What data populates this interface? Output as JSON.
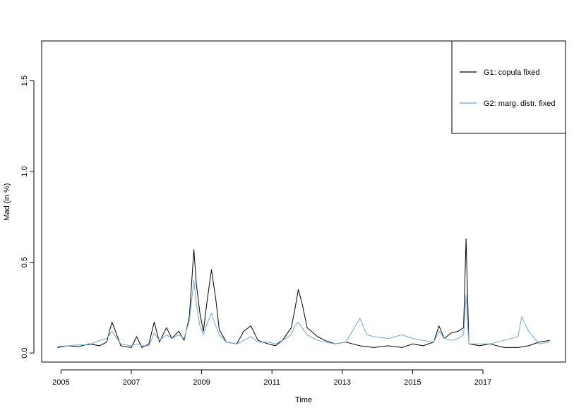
{
  "chart_data": {
    "type": "line",
    "title": "",
    "xlabel": "Time",
    "ylabel": "Mad (in %)",
    "xlim": [
      2004.45,
      2019.35
    ],
    "ylim": [
      -0.05,
      1.72
    ],
    "x_ticks": [
      2005,
      2007,
      2009,
      2011,
      2013,
      2015,
      2017
    ],
    "x_tick_labels": [
      "2005",
      "2007",
      "2009",
      "2011",
      "2013",
      "2015",
      "2017"
    ],
    "y_ticks": [
      0.0,
      0.5,
      1.0,
      1.5
    ],
    "y_tick_labels": [
      "0.0",
      "0.5",
      "1.0",
      "1.5"
    ],
    "grid": false,
    "legend_position": "top-right",
    "series": [
      {
        "name": "G1: copula fixed",
        "color": "#000000",
        "points": [
          [
            2004.9,
            0.03
          ],
          [
            2005.2,
            0.04
          ],
          [
            2005.5,
            0.035
          ],
          [
            2005.8,
            0.05
          ],
          [
            2006.1,
            0.04
          ],
          [
            2006.3,
            0.06
          ],
          [
            2006.45,
            0.17
          ],
          [
            2006.55,
            0.12
          ],
          [
            2006.7,
            0.04
          ],
          [
            2007.0,
            0.03
          ],
          [
            2007.15,
            0.09
          ],
          [
            2007.3,
            0.03
          ],
          [
            2007.5,
            0.05
          ],
          [
            2007.65,
            0.17
          ],
          [
            2007.8,
            0.06
          ],
          [
            2008.0,
            0.14
          ],
          [
            2008.15,
            0.08
          ],
          [
            2008.35,
            0.12
          ],
          [
            2008.5,
            0.07
          ],
          [
            2008.65,
            0.2
          ],
          [
            2008.78,
            0.57
          ],
          [
            2008.85,
            0.38
          ],
          [
            2008.95,
            0.22
          ],
          [
            2009.05,
            0.12
          ],
          [
            2009.15,
            0.28
          ],
          [
            2009.28,
            0.46
          ],
          [
            2009.4,
            0.3
          ],
          [
            2009.5,
            0.13
          ],
          [
            2009.7,
            0.06
          ],
          [
            2010.0,
            0.05
          ],
          [
            2010.2,
            0.12
          ],
          [
            2010.4,
            0.15
          ],
          [
            2010.6,
            0.07
          ],
          [
            2010.9,
            0.05
          ],
          [
            2011.1,
            0.04
          ],
          [
            2011.3,
            0.07
          ],
          [
            2011.55,
            0.14
          ],
          [
            2011.65,
            0.24
          ],
          [
            2011.75,
            0.35
          ],
          [
            2011.85,
            0.28
          ],
          [
            2012.0,
            0.14
          ],
          [
            2012.3,
            0.09
          ],
          [
            2012.5,
            0.07
          ],
          [
            2012.8,
            0.05
          ],
          [
            2013.1,
            0.06
          ],
          [
            2013.5,
            0.04
          ],
          [
            2013.9,
            0.03
          ],
          [
            2014.3,
            0.04
          ],
          [
            2014.7,
            0.03
          ],
          [
            2015.0,
            0.05
          ],
          [
            2015.3,
            0.04
          ],
          [
            2015.6,
            0.06
          ],
          [
            2015.75,
            0.15
          ],
          [
            2015.9,
            0.08
          ],
          [
            2016.1,
            0.11
          ],
          [
            2016.3,
            0.12
          ],
          [
            2016.45,
            0.14
          ],
          [
            2016.52,
            0.63
          ],
          [
            2016.6,
            0.05
          ],
          [
            2016.9,
            0.04
          ],
          [
            2017.2,
            0.05
          ],
          [
            2017.6,
            0.03
          ],
          [
            2018.0,
            0.03
          ],
          [
            2018.3,
            0.04
          ],
          [
            2018.6,
            0.06
          ],
          [
            2018.9,
            0.07
          ]
        ]
      },
      {
        "name": "G2: marg. distr. fixed",
        "color": "#6fa8d6",
        "points": [
          [
            2004.9,
            0.035
          ],
          [
            2005.2,
            0.04
          ],
          [
            2005.5,
            0.045
          ],
          [
            2005.8,
            0.045
          ],
          [
            2006.1,
            0.07
          ],
          [
            2006.3,
            0.08
          ],
          [
            2006.45,
            0.12
          ],
          [
            2006.55,
            0.09
          ],
          [
            2006.7,
            0.05
          ],
          [
            2007.0,
            0.04
          ],
          [
            2007.15,
            0.05
          ],
          [
            2007.3,
            0.04
          ],
          [
            2007.5,
            0.04
          ],
          [
            2007.65,
            0.11
          ],
          [
            2007.8,
            0.07
          ],
          [
            2008.0,
            0.1
          ],
          [
            2008.15,
            0.08
          ],
          [
            2008.35,
            0.1
          ],
          [
            2008.5,
            0.08
          ],
          [
            2008.65,
            0.18
          ],
          [
            2008.78,
            0.4
          ],
          [
            2008.85,
            0.27
          ],
          [
            2008.95,
            0.15
          ],
          [
            2009.05,
            0.1
          ],
          [
            2009.15,
            0.16
          ],
          [
            2009.28,
            0.22
          ],
          [
            2009.4,
            0.15
          ],
          [
            2009.5,
            0.1
          ],
          [
            2009.7,
            0.06
          ],
          [
            2010.0,
            0.05
          ],
          [
            2010.2,
            0.07
          ],
          [
            2010.4,
            0.09
          ],
          [
            2010.6,
            0.06
          ],
          [
            2010.9,
            0.06
          ],
          [
            2011.1,
            0.05
          ],
          [
            2011.3,
            0.07
          ],
          [
            2011.55,
            0.1
          ],
          [
            2011.65,
            0.15
          ],
          [
            2011.75,
            0.17
          ],
          [
            2011.85,
            0.14
          ],
          [
            2012.0,
            0.1
          ],
          [
            2012.3,
            0.07
          ],
          [
            2012.5,
            0.06
          ],
          [
            2012.8,
            0.05
          ],
          [
            2013.1,
            0.06
          ],
          [
            2013.5,
            0.19
          ],
          [
            2013.7,
            0.1
          ],
          [
            2013.9,
            0.09
          ],
          [
            2014.3,
            0.08
          ],
          [
            2014.7,
            0.1
          ],
          [
            2015.0,
            0.08
          ],
          [
            2015.3,
            0.07
          ],
          [
            2015.6,
            0.06
          ],
          [
            2015.75,
            0.12
          ],
          [
            2015.9,
            0.08
          ],
          [
            2016.1,
            0.07
          ],
          [
            2016.3,
            0.08
          ],
          [
            2016.45,
            0.1
          ],
          [
            2016.52,
            0.32
          ],
          [
            2016.6,
            0.05
          ],
          [
            2016.9,
            0.05
          ],
          [
            2017.2,
            0.05
          ],
          [
            2017.6,
            0.07
          ],
          [
            2018.0,
            0.09
          ],
          [
            2018.1,
            0.2
          ],
          [
            2018.3,
            0.12
          ],
          [
            2018.6,
            0.05
          ],
          [
            2018.9,
            0.06
          ]
        ]
      }
    ]
  }
}
